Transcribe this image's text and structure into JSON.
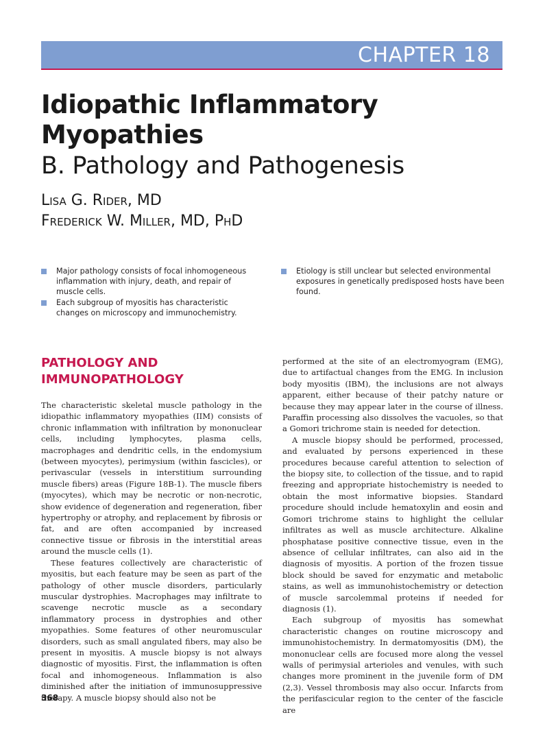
{
  "header": {
    "chapter": "CHAPTER 18"
  },
  "title": {
    "line1": "Idiopathic Inflammatory",
    "line2": "Myopathies",
    "subtitle": "B. Pathology and Pathogenesis"
  },
  "authors": [
    "Lisa G. Rider, MD",
    "Frederick W. Miller, MD, PhD"
  ],
  "summary": {
    "left": [
      "Major pathology consists of focal inhomogeneous inflammation with injury, death, and repair of muscle cells.",
      "Each subgroup of myositis has characteristic changes on microscopy and immunochemistry."
    ],
    "right": [
      "Etiology is still unclear but selected environmental exposures in genetically predisposed hosts have been found."
    ]
  },
  "section": {
    "heading": "PATHOLOGY AND IMMUNOPATHOLOGY"
  },
  "body": {
    "left": [
      "The characteristic skeletal muscle pathology in the idiopathic inflammatory myopathies (IIM) consists of chronic inflammation with infiltration by mononuclear cells, including lymphocytes, plasma cells, macrophages and dendritic cells, in the endomysium (between myocytes), perimysium (within fascicles), or perivascular (vessels in interstitium surrounding muscle fibers) areas (Figure 18B-1). The muscle fibers (myocytes), which may be necrotic or non-necrotic, show evidence of degeneration and regeneration, fiber hypertrophy or atrophy, and replacement by fibrosis or fat, and are often accompanied by increased connective tissue or fibrosis in the interstitial areas around the muscle cells (1).",
      "These features collectively are characteristic of myositis, but each feature may be seen as part of the pathology of other muscle disorders, particularly muscular dystrophies. Macrophages may infiltrate to scavenge necrotic muscle as a secondary inflammatory process in dystrophies and other myopathies. Some features of other neuromuscular disorders, such as small angulated fibers, may also be present in myositis. A muscle biopsy is not always diagnostic of myositis. First, the inflammation is often focal and inhomogeneous. Inflammation is also diminished after the initiation of immunosuppressive therapy. A muscle biopsy should also not be"
    ],
    "right": [
      "performed at the site of an electromyogram (EMG), due to artifactual changes from the EMG. In inclusion body myositis (IBM), the inclusions are not always apparent, either because of their patchy nature or because they may appear later in the course of illness. Paraffin processing also dissolves the vacuoles, so that a Gomori trichrome stain is needed for detection.",
      "A muscle biopsy should be performed, processed, and evaluated by persons experienced in these procedures because careful attention to selection of the biopsy site, to collection of the tissue, and to rapid freezing and appropriate histochemistry is needed to obtain the most informative biopsies. Standard procedure should include hematoxylin and eosin and Gomori trichrome stains to highlight the cellular infiltrates as well as muscle architecture. Alkaline phosphatase positive connective tissue, even in the absence of cellular infiltrates, can also aid in the diagnosis of myositis. A portion of the frozen tissue block should be saved for enzymatic and metabolic stains, as well as immunohistochemistry or detection of muscle sarcolemmal proteins if needed for diagnosis (1).",
      "Each subgroup of myositis has somewhat characteristic changes on routine microscopy and immunohistochemistry. In dermatomyositis (DM), the mononuclear cells are focused more along the vessel walls of perimysial arterioles and venules, with such changes more prominent in the juvenile form of DM (2,3). Vessel thrombosis may also occur. Infarcts from the perifascicular region to the center of the fascicle are"
    ]
  },
  "page_number": "368"
}
